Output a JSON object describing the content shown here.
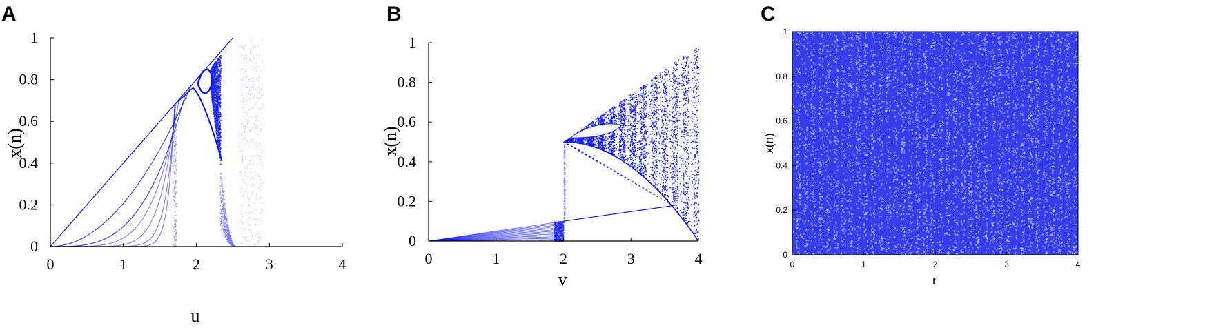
{
  "panels": [
    {
      "letter": "A"
    },
    {
      "letter": "B"
    },
    {
      "letter": "C"
    }
  ],
  "colors": {
    "points": "#0a14e6",
    "axis": "#000000"
  },
  "chart_data": [
    {
      "type": "scatter",
      "panel": "A",
      "title": "",
      "xlabel": "u",
      "ylabel": "x(n)",
      "xlim": [
        0,
        4
      ],
      "ylim": [
        0,
        1
      ],
      "xticks": [
        "0",
        "1",
        "2",
        "3",
        "4"
      ],
      "yticks": [
        "0",
        "0.2",
        "0.4",
        "0.6",
        "0.8",
        "1"
      ],
      "grid": false,
      "description_values": {
        "diagonal_end": [
          2.5,
          1.0
        ],
        "period_doubling_start": [
          1.95,
          0.76
        ],
        "bubble_center": [
          2.15,
          0.78
        ],
        "chaotic_band": [
          2.2,
          2.32
        ],
        "band_top": 0.92,
        "band_bottom": 0.38,
        "sparse_region": [
          2.6,
          2.9
        ]
      }
    },
    {
      "type": "scatter",
      "panel": "B",
      "title": "",
      "xlabel": "v",
      "ylabel": "x(n)",
      "xlim": [
        0,
        4
      ],
      "ylim": [
        0,
        1
      ],
      "xticks": [
        "0",
        "1",
        "2",
        "3",
        "4"
      ],
      "yticks": [
        "0",
        "0.2",
        "0.4",
        "0.6",
        "0.8",
        "1"
      ],
      "grid": false,
      "description_values": {
        "low_line_end": [
          2.0,
          0.1
        ],
        "jump_at": 2.0,
        "upper_edge_start": [
          2.0,
          0.5
        ],
        "upper_edge_end": [
          4.0,
          0.99
        ],
        "lower_curve_end": [
          4.0,
          0.0
        ],
        "lobe_center": [
          2.6,
          0.55
        ]
      }
    },
    {
      "type": "scatter",
      "panel": "C",
      "title": "",
      "xlabel": "r",
      "ylabel": "x(n)",
      "xlim": [
        0,
        4
      ],
      "ylim": [
        0,
        1
      ],
      "xticks": [
        "0",
        "1",
        "2",
        "3",
        "4"
      ],
      "yticks": [
        "0",
        "0.2",
        "0.4",
        "0.6",
        "0.8",
        "1"
      ],
      "grid": false,
      "description_values": {
        "coverage": "uniform chaotic filling of [0,1] for all r in [0,4]"
      }
    }
  ]
}
